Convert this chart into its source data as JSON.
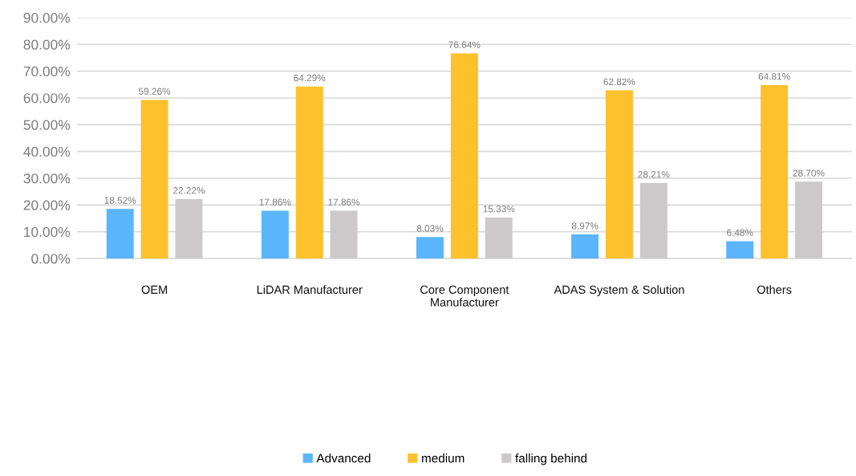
{
  "chart_data": {
    "type": "bar",
    "categories": [
      "OEM",
      "LiDAR Manufacturer",
      "Core Component\nManufacturer",
      "ADAS System & Solution",
      "Others"
    ],
    "series": [
      {
        "name": "Advanced",
        "color": "#5bb5fb",
        "values": [
          18.52,
          17.86,
          8.03,
          8.97,
          6.48
        ],
        "value_labels": [
          "18.52%",
          "17.86%",
          "8.03%",
          "8.97%",
          "6.48%"
        ]
      },
      {
        "name": "medium",
        "color": "#fcc12d",
        "values": [
          59.26,
          64.29,
          76.64,
          62.82,
          64.81
        ],
        "value_labels": [
          "59.26%",
          "64.29%",
          "76.64%",
          "62.82%",
          "64.81%"
        ]
      },
      {
        "name": "falling behind",
        "color": "#cbc9c9",
        "values": [
          22.22,
          17.86,
          15.33,
          28.21,
          28.7
        ],
        "value_labels": [
          "22.22%",
          "17.86%",
          "15.33%",
          "28.21%",
          "28.70%"
        ]
      }
    ],
    "ylim": [
      0,
      90
    ],
    "yticks": [
      {
        "value": 0,
        "label": "0.00%"
      },
      {
        "value": 10,
        "label": "10.00%"
      },
      {
        "value": 20,
        "label": "20.00%"
      },
      {
        "value": 30,
        "label": "30.00%"
      },
      {
        "value": 40,
        "label": "40.00%"
      },
      {
        "value": 50,
        "label": "50.00%"
      },
      {
        "value": 60,
        "label": "60.00%"
      },
      {
        "value": 70,
        "label": "70.00%"
      },
      {
        "value": 80,
        "label": "80.00%"
      },
      {
        "value": 90,
        "label": "90.00%"
      }
    ],
    "grid": "y",
    "legend": "bottom"
  }
}
